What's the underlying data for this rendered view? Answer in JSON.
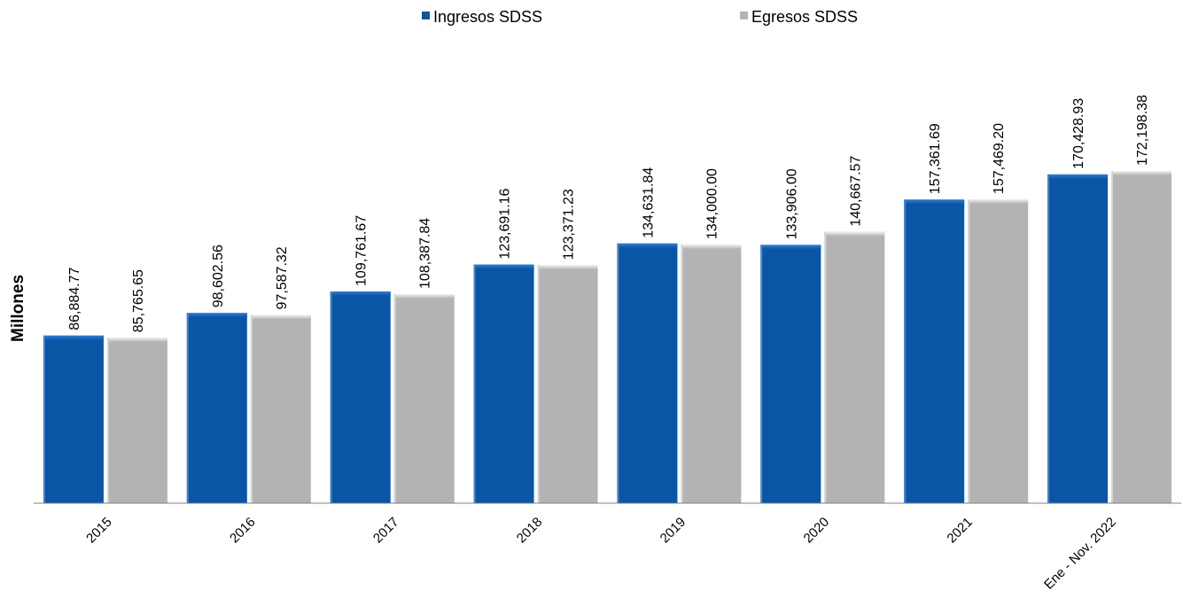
{
  "chart_data": {
    "type": "bar",
    "title": "",
    "xlabel": "",
    "ylabel": "Millones",
    "categories": [
      "2015",
      "2016",
      "2017",
      "2018",
      "2019",
      "2020",
      "2021",
      "Ene - Nov. 2022"
    ],
    "series": [
      {
        "name": "Ingresos SDSS",
        "color": "#0B56A4",
        "values": [
          86884.77,
          98602.56,
          109761.67,
          123691.16,
          134631.84,
          133906.0,
          157361.69,
          170428.93
        ],
        "labels": [
          "86,884.77",
          "98,602.56",
          "109,761.67",
          "123,691.16",
          "134,631.84",
          "133,906.00",
          "157,361.69",
          "170,428.93"
        ]
      },
      {
        "name": "Egresos SDSS",
        "color": "#B3B3B3",
        "values": [
          85765.65,
          97587.32,
          108387.84,
          123371.23,
          134000.0,
          140667.57,
          157469.2,
          172198.38
        ],
        "labels": [
          "85,765.65",
          "97,587.32",
          "108,387.84",
          "123,371.23",
          "134,000.00",
          "140,667.57",
          "157,469.20",
          "172,198.38"
        ]
      }
    ],
    "ylim": [
      0,
      172198.38
    ],
    "grid": false,
    "legend_position": "top-center",
    "data_labels": true
  }
}
